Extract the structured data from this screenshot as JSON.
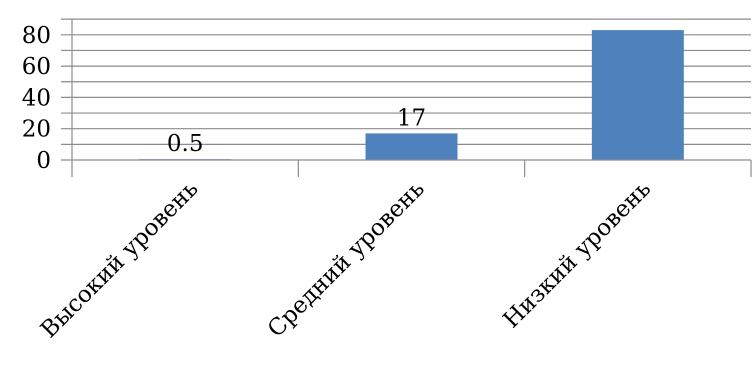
{
  "chart_data": {
    "type": "bar",
    "categories": [
      "Высокий уровень",
      "Средний уровень",
      "Низкий уровень"
    ],
    "values": [
      0.5,
      17,
      83
    ],
    "data_labels": [
      "0.5",
      "17",
      ""
    ],
    "title": "",
    "xlabel": "",
    "ylabel": "",
    "ylim": [
      0,
      90
    ],
    "yticks": [
      0,
      20,
      40,
      60,
      80
    ],
    "grid": true,
    "bar_color": "#4f81bd",
    "grid_color": "#8c8c8c"
  }
}
